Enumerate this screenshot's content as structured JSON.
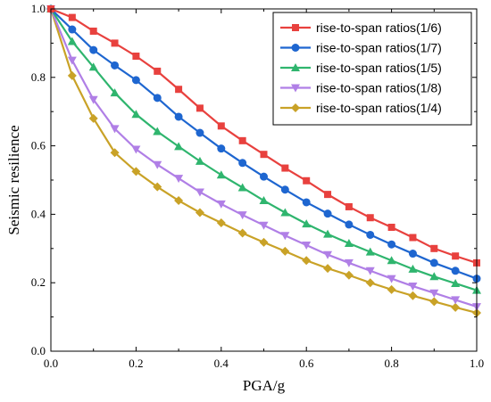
{
  "chart_data": {
    "type": "line",
    "title": "",
    "xlabel": "PGA/g",
    "ylabel": "Seismic resilience",
    "xlim": [
      0.0,
      1.0
    ],
    "ylim": [
      0.0,
      1.0
    ],
    "x_ticks": [
      "0.0",
      "0.2",
      "0.4",
      "0.6",
      "0.8",
      "1.0"
    ],
    "y_ticks": [
      "0.0",
      "0.2",
      "0.4",
      "0.6",
      "0.8",
      "1.0"
    ],
    "grid": false,
    "legend_position": "top-right",
    "x": [
      0.0,
      0.05,
      0.1,
      0.15,
      0.2,
      0.25,
      0.3,
      0.35,
      0.4,
      0.45,
      0.5,
      0.55,
      0.6,
      0.65,
      0.7,
      0.75,
      0.8,
      0.85,
      0.9,
      0.95,
      1.0
    ],
    "series": [
      {
        "name": "rise-to-span ratios(1/6)",
        "color": "#e8413e",
        "marker": "square",
        "values": [
          1.0,
          0.975,
          0.935,
          0.9,
          0.862,
          0.818,
          0.765,
          0.71,
          0.658,
          0.615,
          0.575,
          0.535,
          0.498,
          0.458,
          0.422,
          0.39,
          0.362,
          0.332,
          0.3,
          0.278,
          0.258
        ]
      },
      {
        "name": "rise-to-span ratios(1/7)",
        "color": "#1e66d0",
        "marker": "circle",
        "values": [
          1.0,
          0.94,
          0.88,
          0.835,
          0.792,
          0.74,
          0.685,
          0.638,
          0.592,
          0.55,
          0.51,
          0.472,
          0.435,
          0.402,
          0.37,
          0.34,
          0.312,
          0.285,
          0.258,
          0.235,
          0.212
        ]
      },
      {
        "name": "rise-to-span ratios(1/5)",
        "color": "#2fb56e",
        "marker": "triangle-up",
        "values": [
          1.0,
          0.905,
          0.83,
          0.755,
          0.692,
          0.642,
          0.598,
          0.555,
          0.515,
          0.478,
          0.44,
          0.405,
          0.372,
          0.342,
          0.315,
          0.29,
          0.265,
          0.24,
          0.218,
          0.198,
          0.178
        ]
      },
      {
        "name": "rise-to-span ratios(1/8)",
        "color": "#b07fe6",
        "marker": "triangle-down",
        "values": [
          1.0,
          0.85,
          0.735,
          0.65,
          0.59,
          0.545,
          0.505,
          0.465,
          0.43,
          0.398,
          0.368,
          0.338,
          0.31,
          0.282,
          0.258,
          0.235,
          0.212,
          0.19,
          0.17,
          0.15,
          0.13
        ]
      },
      {
        "name": "rise-to-span ratios(1/4)",
        "color": "#c9a227",
        "marker": "diamond",
        "values": [
          1.0,
          0.805,
          0.68,
          0.58,
          0.525,
          0.48,
          0.44,
          0.405,
          0.375,
          0.345,
          0.318,
          0.292,
          0.265,
          0.242,
          0.222,
          0.2,
          0.18,
          0.162,
          0.145,
          0.128,
          0.112
        ]
      }
    ]
  }
}
